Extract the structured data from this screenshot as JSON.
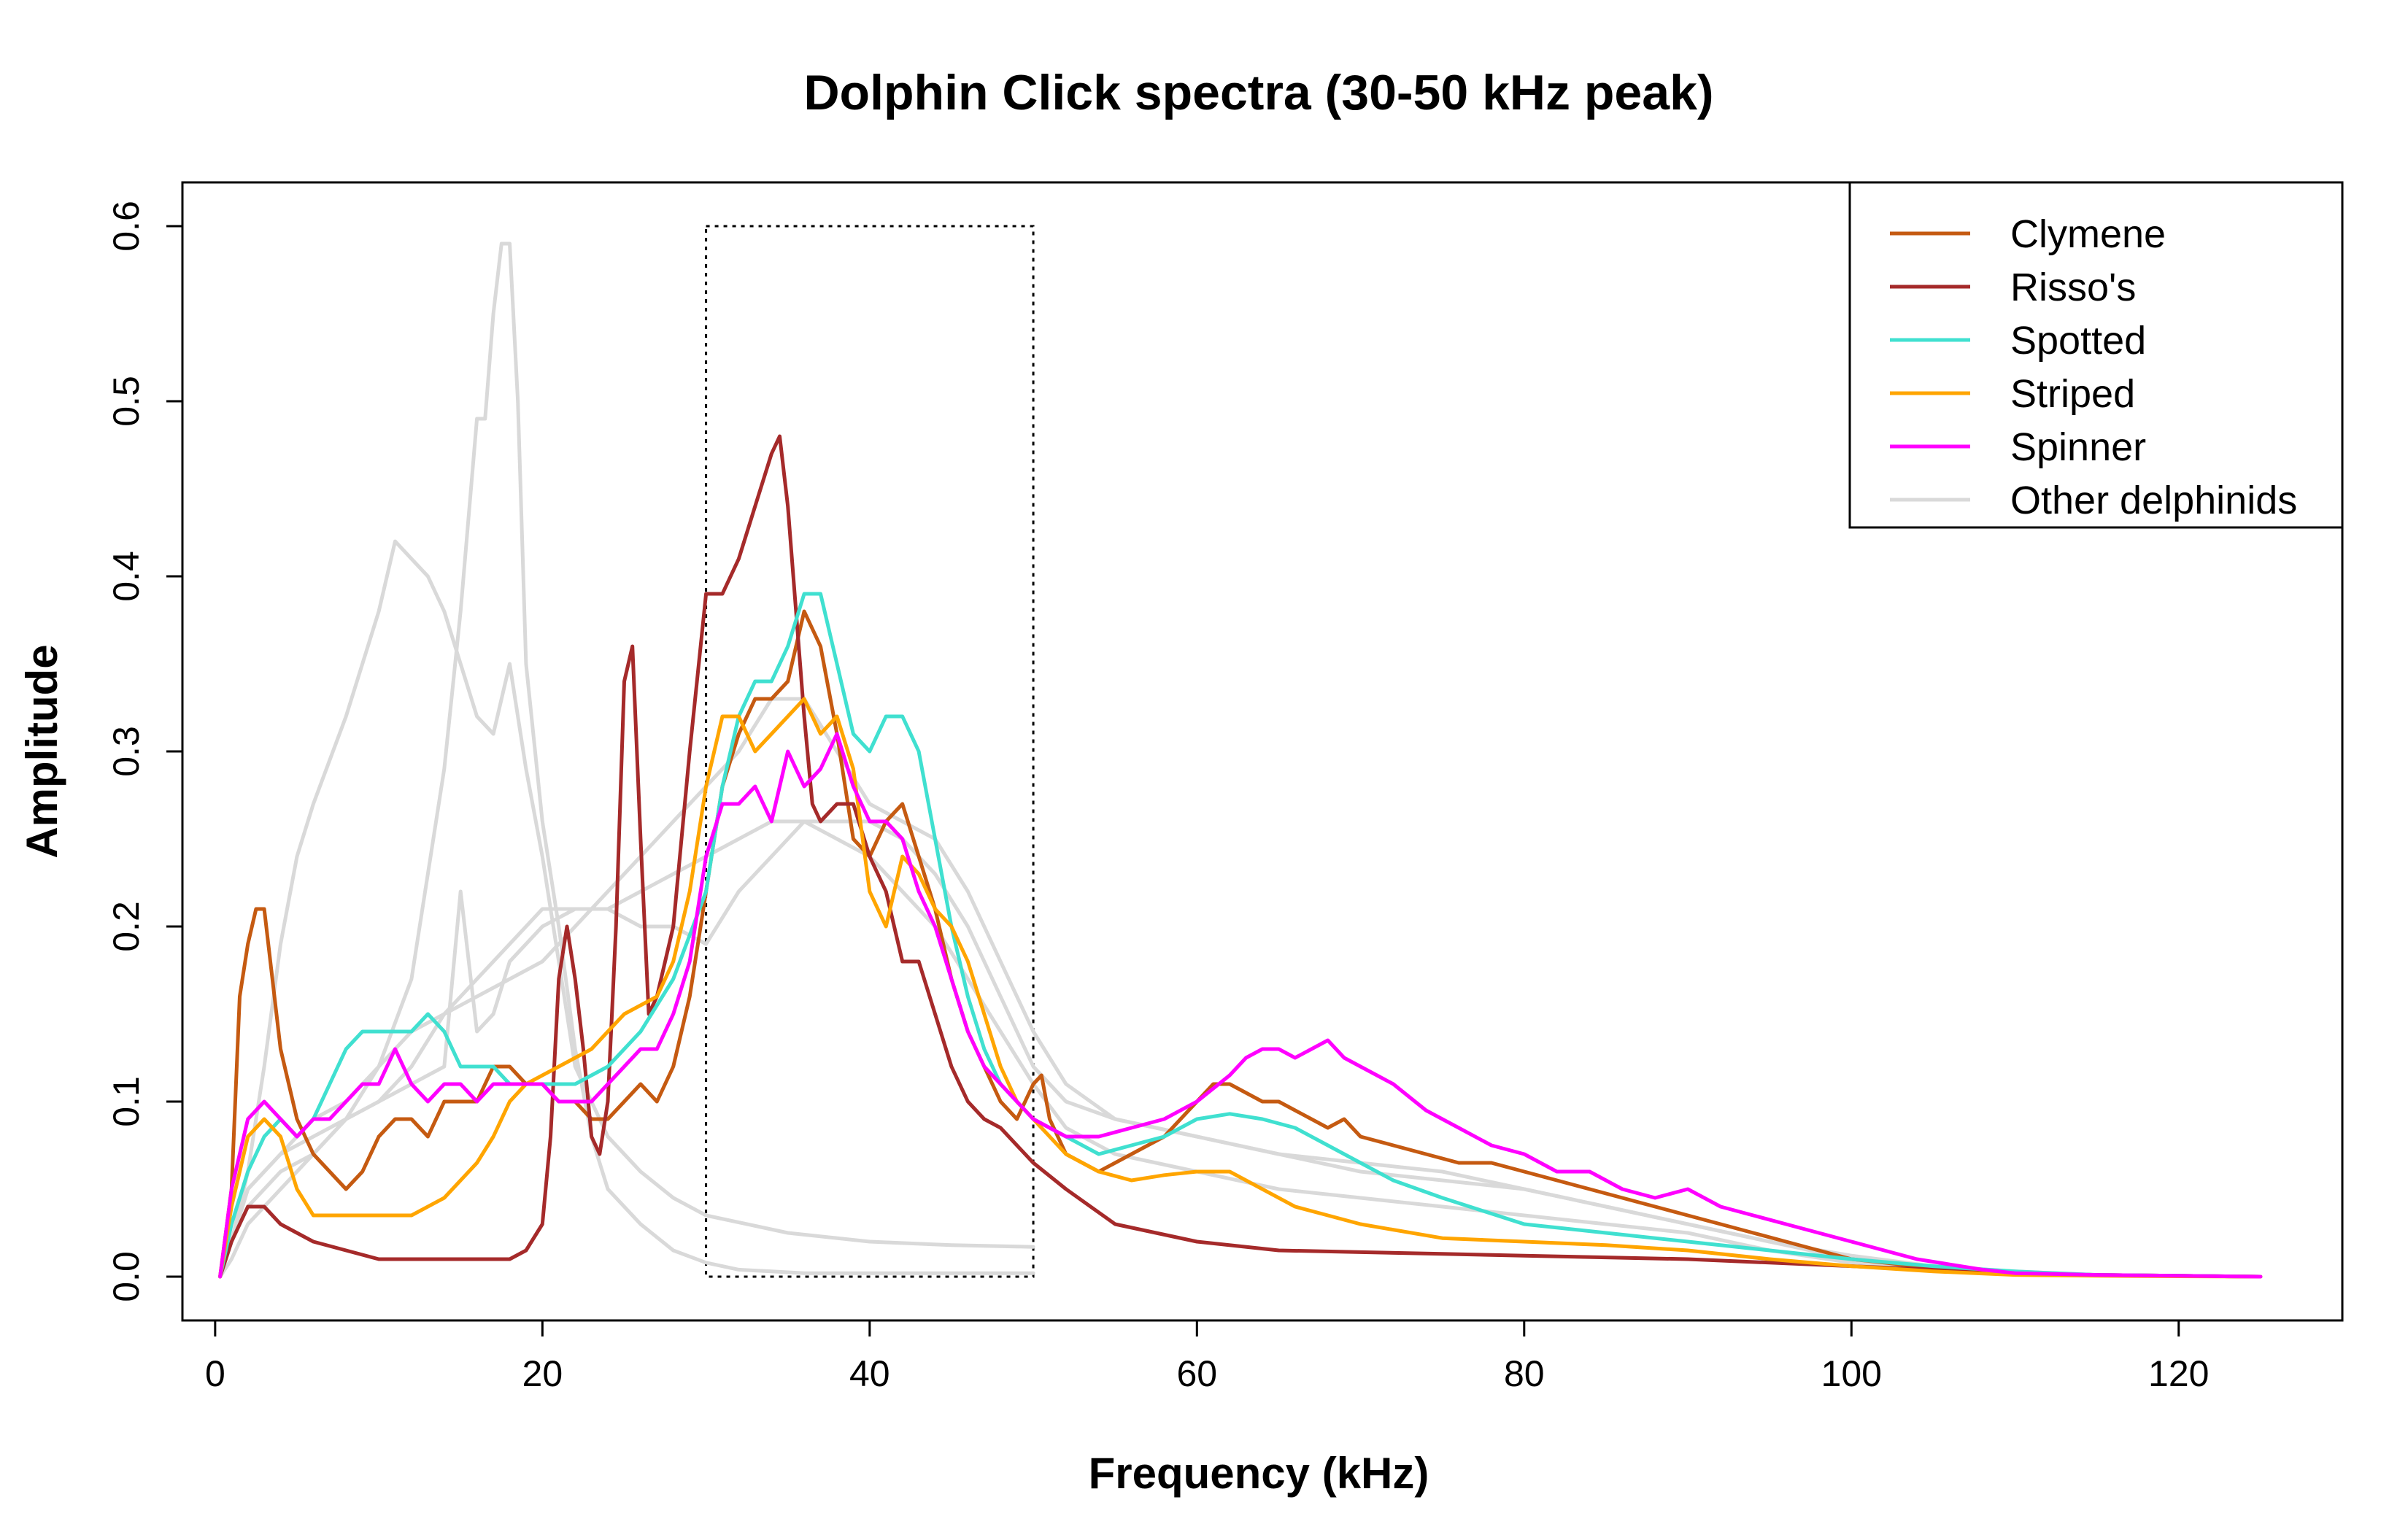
{
  "chart_data": {
    "type": "line",
    "title": "Dolphin Click spectra (30-50 kHz peak)",
    "xlabel": "Frequency (kHz)",
    "ylabel": "Amplitude",
    "xlim": [
      -2,
      130
    ],
    "ylim": [
      -0.025,
      0.625
    ],
    "xticks": [
      0,
      20,
      40,
      60,
      80,
      100,
      120
    ],
    "yticks": [
      0.0,
      0.1,
      0.2,
      0.3,
      0.4,
      0.5,
      0.6
    ],
    "xtick_labels": [
      "0",
      "20",
      "40",
      "60",
      "80",
      "100",
      "120"
    ],
    "ytick_labels": [
      "0.0",
      "0.1",
      "0.2",
      "0.3",
      "0.4",
      "0.5",
      "0.6"
    ],
    "grid": false,
    "legend_position": "top-right",
    "highlight_box": {
      "x": [
        30,
        50
      ],
      "y": [
        0,
        0.6
      ],
      "style": "dotted"
    },
    "legend": [
      {
        "name": "Clymene",
        "color": "#C55A11"
      },
      {
        "name": "Risso's",
        "color": "#A52A2A"
      },
      {
        "name": "Spotted",
        "color": "#40E0D0"
      },
      {
        "name": "Striped",
        "color": "#FFA500"
      },
      {
        "name": "Spinner",
        "color": "#FF00FF"
      },
      {
        "name": "Other delphinids",
        "color": "#D9D9D9"
      }
    ],
    "series": [
      {
        "group": "Other delphinids",
        "color": "#D9D9D9",
        "x": [
          0.3,
          1,
          2,
          3,
          4,
          5,
          6,
          8,
          10,
          11,
          12,
          13,
          14,
          15,
          16,
          17,
          18,
          19,
          20,
          21,
          22,
          24,
          26,
          28,
          30,
          35,
          40,
          45,
          50
        ],
        "y": [
          0.0,
          0.02,
          0.06,
          0.12,
          0.19,
          0.24,
          0.27,
          0.32,
          0.38,
          0.42,
          0.41,
          0.4,
          0.38,
          0.35,
          0.32,
          0.31,
          0.35,
          0.29,
          0.24,
          0.18,
          0.12,
          0.08,
          0.06,
          0.045,
          0.035,
          0.025,
          0.02,
          0.018,
          0.017
        ]
      },
      {
        "group": "Other delphinids",
        "color": "#D9D9D9",
        "x": [
          0.3,
          1,
          2,
          4,
          6,
          8,
          10,
          12,
          14,
          15,
          16,
          16.5,
          17,
          17.5,
          18,
          18.5,
          19,
          20,
          21,
          22,
          23,
          24,
          26,
          28,
          30,
          32,
          34,
          36,
          40,
          45,
          50
        ],
        "y": [
          0.0,
          0.02,
          0.04,
          0.06,
          0.07,
          0.09,
          0.12,
          0.17,
          0.29,
          0.38,
          0.49,
          0.49,
          0.55,
          0.59,
          0.59,
          0.5,
          0.35,
          0.26,
          0.2,
          0.13,
          0.08,
          0.05,
          0.03,
          0.015,
          0.008,
          0.004,
          0.003,
          0.002,
          0.002,
          0.002,
          0.002
        ]
      },
      {
        "group": "Other delphinids",
        "color": "#D9D9D9",
        "x": [
          0.3,
          1,
          2,
          4,
          6,
          8,
          10,
          12,
          14,
          15,
          16,
          17,
          18,
          20,
          22,
          24,
          26,
          28,
          30,
          32,
          34,
          36,
          38,
          40,
          42,
          44,
          46,
          48,
          50,
          52,
          55,
          60,
          65,
          70,
          75,
          80,
          85,
          90,
          95,
          100,
          105,
          110
        ],
        "y": [
          0.0,
          0.02,
          0.05,
          0.07,
          0.08,
          0.09,
          0.1,
          0.11,
          0.12,
          0.22,
          0.14,
          0.15,
          0.18,
          0.2,
          0.21,
          0.21,
          0.22,
          0.23,
          0.24,
          0.25,
          0.26,
          0.26,
          0.26,
          0.26,
          0.25,
          0.23,
          0.2,
          0.16,
          0.12,
          0.1,
          0.09,
          0.08,
          0.07,
          0.06,
          0.055,
          0.05,
          0.04,
          0.03,
          0.02,
          0.01,
          0.005,
          0.002
        ]
      },
      {
        "group": "Other delphinids",
        "color": "#D9D9D9",
        "x": [
          0.3,
          1,
          2,
          4,
          6,
          8,
          10,
          12,
          14,
          16,
          18,
          20,
          22,
          24,
          26,
          28,
          30,
          32,
          34,
          36,
          38,
          40,
          42,
          44,
          46,
          48,
          50,
          52,
          55,
          60,
          65,
          70,
          75,
          80,
          85,
          90,
          95,
          100,
          105,
          110,
          115,
          120,
          125
        ],
        "y": [
          0.0,
          0.02,
          0.05,
          0.07,
          0.09,
          0.1,
          0.12,
          0.14,
          0.15,
          0.16,
          0.17,
          0.18,
          0.2,
          0.22,
          0.24,
          0.26,
          0.28,
          0.3,
          0.33,
          0.33,
          0.3,
          0.27,
          0.26,
          0.25,
          0.22,
          0.18,
          0.14,
          0.11,
          0.09,
          0.08,
          0.07,
          0.065,
          0.06,
          0.05,
          0.04,
          0.03,
          0.02,
          0.012,
          0.006,
          0.003,
          0.001,
          0.0005,
          0.0
        ]
      },
      {
        "group": "Other delphinids",
        "color": "#D9D9D9",
        "x": [
          0.3,
          1,
          2,
          4,
          6,
          8,
          10,
          12,
          14,
          16,
          18,
          20,
          22,
          24,
          26,
          28,
          30,
          32,
          34,
          36,
          38,
          40,
          42,
          44,
          46,
          48,
          50,
          52,
          55,
          60,
          65,
          70,
          75,
          80,
          85,
          90,
          95,
          100,
          105,
          110
        ],
        "y": [
          0.0,
          0.01,
          0.03,
          0.05,
          0.07,
          0.09,
          0.1,
          0.12,
          0.15,
          0.17,
          0.19,
          0.21,
          0.21,
          0.21,
          0.2,
          0.2,
          0.19,
          0.22,
          0.24,
          0.26,
          0.25,
          0.24,
          0.22,
          0.2,
          0.17,
          0.14,
          0.11,
          0.085,
          0.07,
          0.06,
          0.05,
          0.045,
          0.04,
          0.035,
          0.03,
          0.025,
          0.015,
          0.008,
          0.004,
          0.002
        ]
      },
      {
        "name": "Clymene",
        "color": "#C55A11",
        "x": [
          0.3,
          1,
          1.5,
          2,
          2.5,
          3,
          3.5,
          4,
          5,
          6,
          7,
          8,
          9,
          10,
          11,
          12,
          13,
          14,
          15,
          16,
          17,
          18,
          19,
          20,
          21,
          22,
          23,
          24,
          25,
          26,
          27,
          28,
          29,
          30,
          31,
          32,
          33,
          34,
          35,
          36,
          37,
          38,
          39,
          40,
          41,
          42,
          43,
          44,
          45,
          46,
          47,
          48,
          49,
          50,
          50.5,
          51,
          52,
          54,
          56,
          58,
          60,
          61,
          62,
          63,
          64,
          65,
          66,
          67,
          68,
          69,
          70,
          72,
          74,
          76,
          78,
          80,
          82,
          84,
          86,
          88,
          90,
          92,
          94,
          96,
          98,
          100,
          102,
          104,
          106,
          108,
          110,
          115,
          120,
          125
        ],
        "y": [
          0.0,
          0.05,
          0.16,
          0.19,
          0.21,
          0.21,
          0.17,
          0.13,
          0.09,
          0.07,
          0.06,
          0.05,
          0.06,
          0.08,
          0.09,
          0.09,
          0.08,
          0.1,
          0.1,
          0.1,
          0.12,
          0.12,
          0.11,
          0.11,
          0.1,
          0.1,
          0.09,
          0.09,
          0.1,
          0.11,
          0.1,
          0.12,
          0.16,
          0.22,
          0.28,
          0.31,
          0.33,
          0.33,
          0.34,
          0.38,
          0.36,
          0.31,
          0.25,
          0.24,
          0.26,
          0.27,
          0.24,
          0.21,
          0.17,
          0.14,
          0.12,
          0.1,
          0.09,
          0.11,
          0.115,
          0.09,
          0.07,
          0.06,
          0.07,
          0.08,
          0.1,
          0.11,
          0.11,
          0.105,
          0.1,
          0.1,
          0.095,
          0.09,
          0.085,
          0.09,
          0.08,
          0.075,
          0.07,
          0.065,
          0.065,
          0.06,
          0.055,
          0.05,
          0.045,
          0.04,
          0.035,
          0.03,
          0.025,
          0.02,
          0.015,
          0.01,
          0.008,
          0.006,
          0.004,
          0.003,
          0.002,
          0.001,
          0.0005,
          0.0
        ]
      },
      {
        "name": "Risso's",
        "color": "#A52A2A",
        "x": [
          0.3,
          1,
          2,
          3,
          4,
          6,
          8,
          10,
          12,
          14,
          16,
          18,
          19,
          20,
          20.5,
          21,
          21.5,
          22,
          22.5,
          23,
          23.5,
          24,
          24.5,
          25,
          25.5,
          26,
          26.5,
          27,
          28,
          29,
          30,
          31,
          32,
          33,
          34,
          34.5,
          35,
          36,
          36.5,
          37,
          38,
          39,
          40,
          41,
          42,
          43,
          44,
          45,
          46,
          47,
          48,
          49,
          50,
          52,
          55,
          60,
          65,
          70,
          75,
          80,
          85,
          90,
          95,
          100,
          105,
          110,
          115,
          120,
          125
        ],
        "y": [
          0.0,
          0.02,
          0.04,
          0.04,
          0.03,
          0.02,
          0.015,
          0.01,
          0.01,
          0.01,
          0.01,
          0.01,
          0.015,
          0.03,
          0.08,
          0.17,
          0.2,
          0.17,
          0.13,
          0.08,
          0.07,
          0.1,
          0.2,
          0.34,
          0.36,
          0.25,
          0.15,
          0.16,
          0.2,
          0.3,
          0.39,
          0.39,
          0.41,
          0.44,
          0.47,
          0.48,
          0.44,
          0.32,
          0.27,
          0.26,
          0.27,
          0.27,
          0.24,
          0.22,
          0.18,
          0.18,
          0.15,
          0.12,
          0.1,
          0.09,
          0.085,
          0.075,
          0.065,
          0.05,
          0.03,
          0.02,
          0.015,
          0.014,
          0.013,
          0.012,
          0.011,
          0.01,
          0.008,
          0.006,
          0.004,
          0.002,
          0.001,
          0.0005,
          0.0
        ]
      },
      {
        "name": "Spotted",
        "color": "#40E0D0",
        "x": [
          0.3,
          1,
          2,
          3,
          4,
          5,
          6,
          7,
          8,
          9,
          10,
          11,
          12,
          13,
          14,
          15,
          16,
          17,
          18,
          19,
          20,
          22,
          24,
          26,
          28,
          30,
          31,
          32,
          33,
          34,
          35,
          36,
          37,
          38,
          39,
          40,
          41,
          42,
          43,
          44,
          45,
          46,
          47,
          48,
          49,
          50,
          52,
          54,
          56,
          58,
          60,
          62,
          64,
          66,
          68,
          70,
          72,
          75,
          80,
          85,
          90,
          95,
          100,
          105,
          110,
          115,
          120,
          125
        ],
        "y": [
          0.0,
          0.03,
          0.06,
          0.08,
          0.09,
          0.08,
          0.09,
          0.11,
          0.13,
          0.14,
          0.14,
          0.14,
          0.14,
          0.15,
          0.14,
          0.12,
          0.12,
          0.12,
          0.11,
          0.11,
          0.11,
          0.11,
          0.12,
          0.14,
          0.17,
          0.22,
          0.28,
          0.32,
          0.34,
          0.34,
          0.36,
          0.39,
          0.39,
          0.35,
          0.31,
          0.3,
          0.32,
          0.32,
          0.3,
          0.25,
          0.2,
          0.16,
          0.13,
          0.11,
          0.1,
          0.09,
          0.08,
          0.07,
          0.075,
          0.08,
          0.09,
          0.093,
          0.09,
          0.085,
          0.075,
          0.065,
          0.055,
          0.045,
          0.03,
          0.025,
          0.02,
          0.015,
          0.01,
          0.006,
          0.003,
          0.001,
          0.0005,
          0.0
        ]
      },
      {
        "name": "Striped",
        "color": "#FFA500",
        "x": [
          0.3,
          1,
          2,
          3,
          4,
          5,
          6,
          8,
          10,
          12,
          14,
          15,
          16,
          17,
          18,
          19,
          20,
          21,
          22,
          23,
          24,
          25,
          26,
          27,
          28,
          29,
          30,
          31,
          32,
          33,
          34,
          35,
          36,
          37,
          38,
          39,
          40,
          41,
          42,
          43,
          44,
          45,
          46,
          47,
          48,
          49,
          50,
          52,
          54,
          56,
          58,
          60,
          62,
          64,
          66,
          68,
          70,
          75,
          80,
          85,
          90,
          95,
          100,
          105,
          110,
          115,
          120,
          125
        ],
        "y": [
          0.0,
          0.04,
          0.08,
          0.09,
          0.08,
          0.05,
          0.035,
          0.035,
          0.035,
          0.035,
          0.045,
          0.055,
          0.065,
          0.08,
          0.1,
          0.11,
          0.115,
          0.12,
          0.125,
          0.13,
          0.14,
          0.15,
          0.155,
          0.16,
          0.18,
          0.22,
          0.28,
          0.32,
          0.32,
          0.3,
          0.31,
          0.32,
          0.33,
          0.31,
          0.32,
          0.29,
          0.22,
          0.2,
          0.24,
          0.23,
          0.21,
          0.2,
          0.18,
          0.15,
          0.12,
          0.1,
          0.09,
          0.07,
          0.06,
          0.055,
          0.058,
          0.06,
          0.06,
          0.05,
          0.04,
          0.035,
          0.03,
          0.022,
          0.02,
          0.018,
          0.015,
          0.01,
          0.006,
          0.003,
          0.001,
          0.0005,
          0.0002,
          0.0
        ]
      },
      {
        "name": "Spinner",
        "color": "#FF00FF",
        "x": [
          0.3,
          1,
          2,
          3,
          4,
          5,
          6,
          7,
          8,
          9,
          10,
          11,
          12,
          13,
          14,
          15,
          16,
          17,
          18,
          19,
          20,
          21,
          22,
          23,
          24,
          25,
          26,
          27,
          28,
          29,
          30,
          31,
          32,
          33,
          34,
          35,
          36,
          37,
          38,
          39,
          40,
          41,
          42,
          43,
          44,
          45,
          46,
          47,
          48,
          49,
          50,
          52,
          54,
          56,
          58,
          60,
          62,
          63,
          64,
          65,
          66,
          67,
          68,
          69,
          70,
          71,
          72,
          74,
          76,
          78,
          80,
          82,
          84,
          86,
          88,
          90,
          92,
          94,
          96,
          98,
          100,
          102,
          104,
          106,
          108,
          110,
          115,
          120,
          125
        ],
        "y": [
          0.0,
          0.05,
          0.09,
          0.1,
          0.09,
          0.08,
          0.09,
          0.09,
          0.1,
          0.11,
          0.11,
          0.13,
          0.11,
          0.1,
          0.11,
          0.11,
          0.1,
          0.11,
          0.11,
          0.11,
          0.11,
          0.1,
          0.1,
          0.1,
          0.11,
          0.12,
          0.13,
          0.13,
          0.15,
          0.18,
          0.24,
          0.27,
          0.27,
          0.28,
          0.26,
          0.3,
          0.28,
          0.29,
          0.31,
          0.28,
          0.26,
          0.26,
          0.25,
          0.22,
          0.2,
          0.17,
          0.14,
          0.12,
          0.11,
          0.1,
          0.09,
          0.08,
          0.08,
          0.085,
          0.09,
          0.1,
          0.115,
          0.125,
          0.13,
          0.13,
          0.125,
          0.13,
          0.135,
          0.125,
          0.12,
          0.115,
          0.11,
          0.095,
          0.085,
          0.075,
          0.07,
          0.06,
          0.06,
          0.05,
          0.045,
          0.05,
          0.04,
          0.035,
          0.03,
          0.025,
          0.02,
          0.015,
          0.01,
          0.007,
          0.004,
          0.002,
          0.001,
          0.0005,
          0.0
        ]
      }
    ]
  }
}
